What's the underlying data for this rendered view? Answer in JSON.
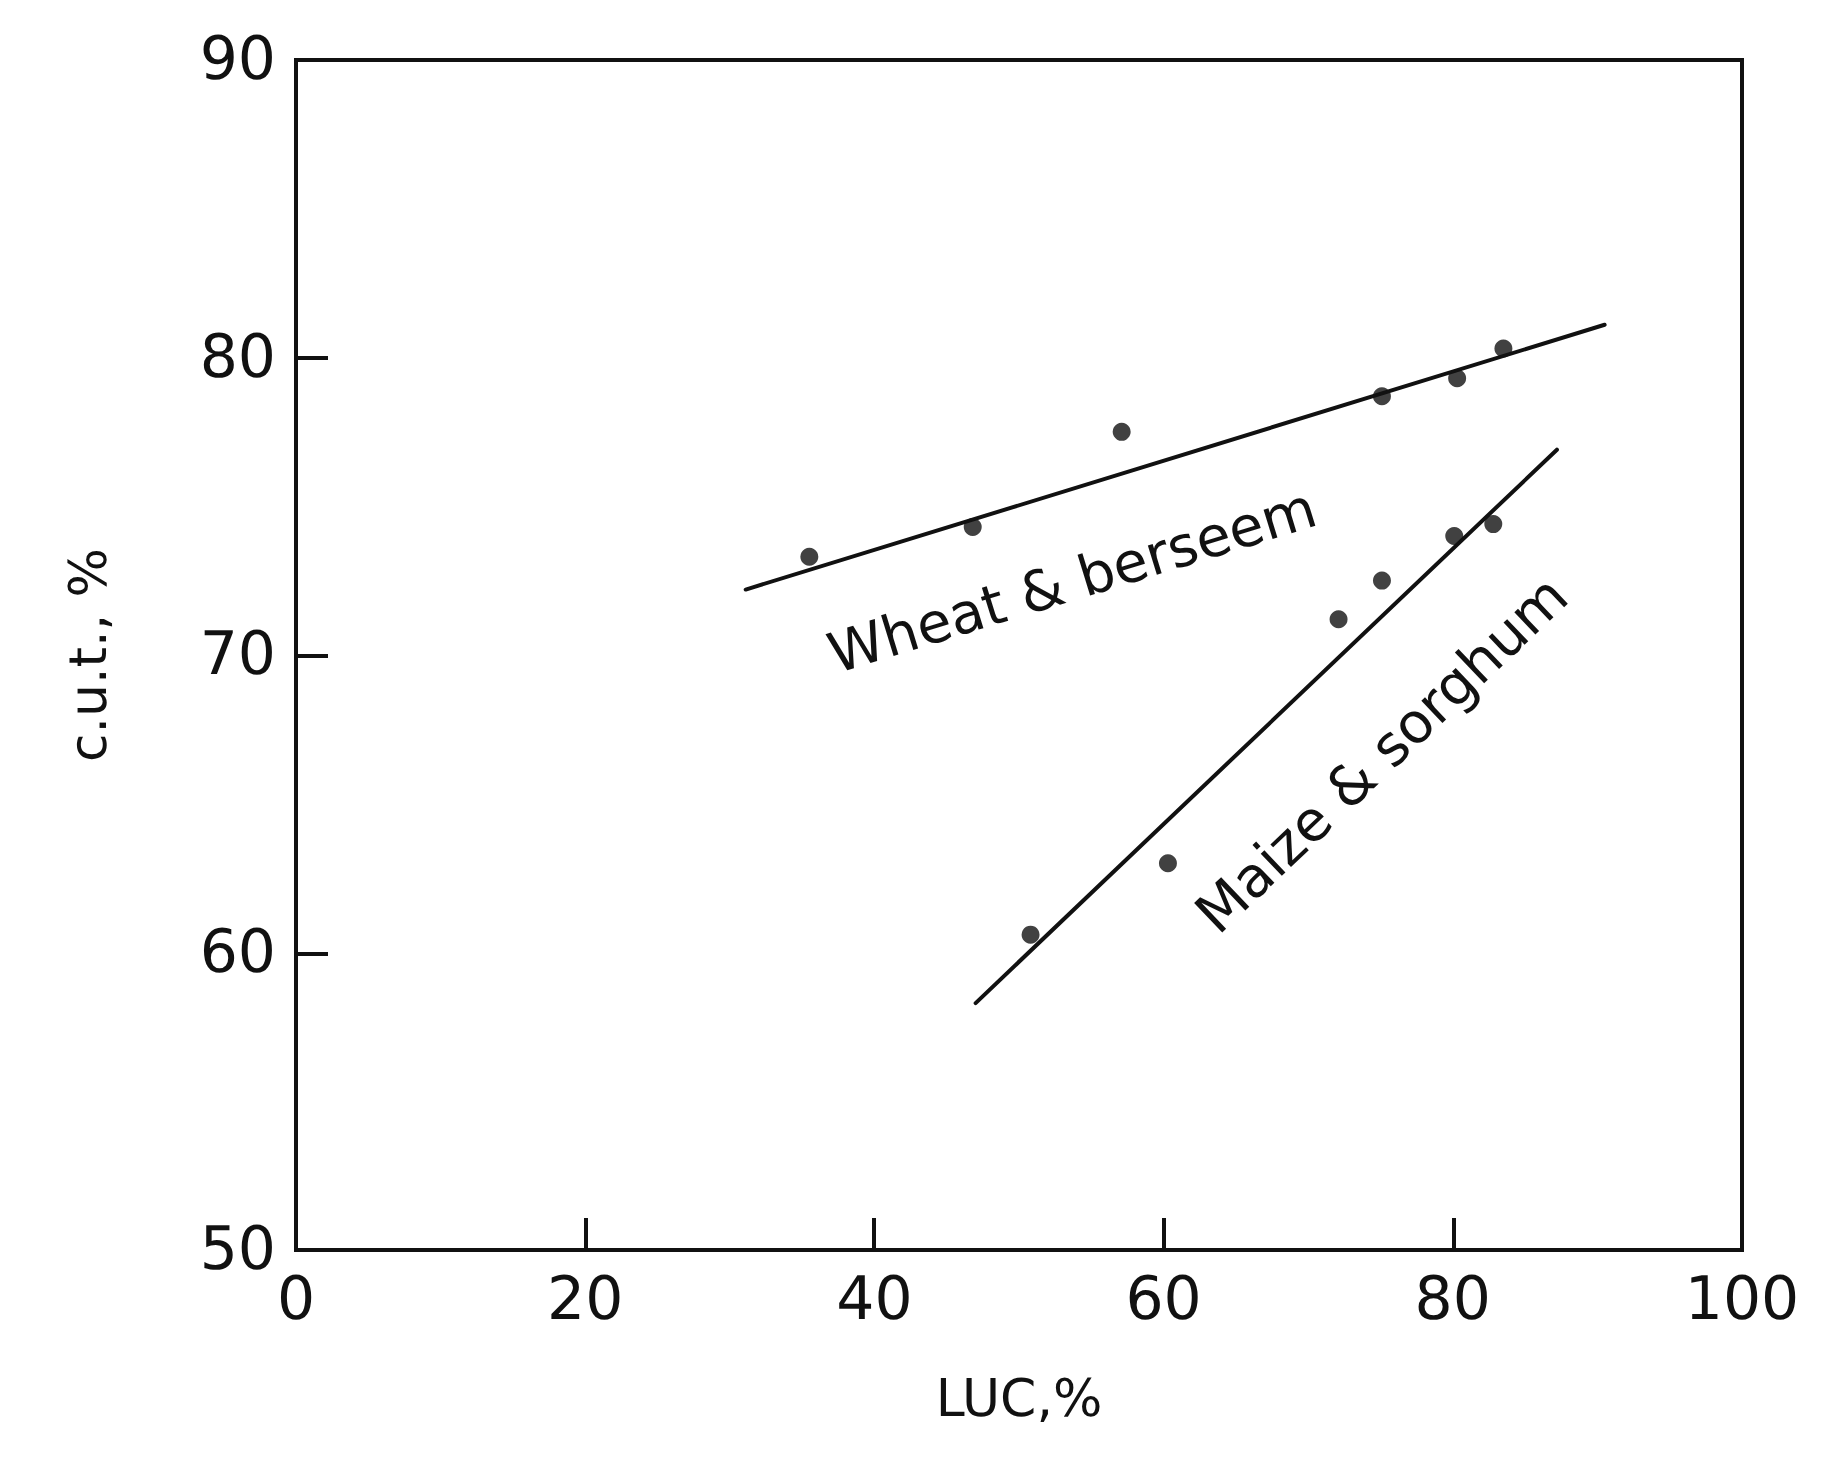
{
  "chart_data": {
    "type": "scatter",
    "xlabel": "LUC,%",
    "ylabel": "c.u.t., %",
    "xlim": [
      0,
      100
    ],
    "xticks": [
      0,
      20,
      40,
      60,
      80,
      100
    ],
    "ylim": [
      50,
      90
    ],
    "yticks": [
      50,
      60,
      70,
      80,
      90
    ],
    "grid": false,
    "legend": false,
    "marker": "circle",
    "series": [
      {
        "color": "#111111",
        "x": [
          35.5,
          46.8,
          57.1,
          75.1,
          80.3,
          83.5
        ],
        "values": [
          73.3,
          74.3,
          77.5,
          78.7,
          79.3,
          80.3
        ]
      },
      {
        "type": "line",
        "name": "Wheat & berseem",
        "color": "#111111",
        "marker": "none",
        "line_style": "solid",
        "x": [
          31.1,
          90.5
        ],
        "values": [
          72.2,
          81.1
        ]
      },
      {
        "color": "#111111",
        "x": [
          50.8,
          60.3,
          72.1,
          75.1,
          80.1,
          82.8
        ],
        "values": [
          60.6,
          63.0,
          71.2,
          72.5,
          74.0,
          74.4
        ]
      },
      {
        "type": "line",
        "name": "Maize & sorghum",
        "color": "#111111",
        "marker": "none",
        "line_style": "solid",
        "x": [
          47.0,
          87.2
        ],
        "values": [
          58.3,
          76.9
        ]
      }
    ]
  }
}
